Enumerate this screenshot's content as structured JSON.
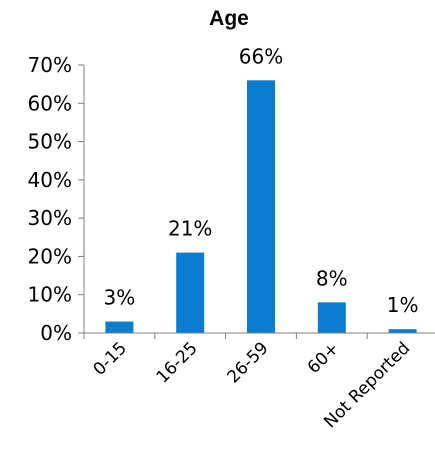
{
  "chart_data": {
    "type": "bar",
    "title": "Age",
    "categories": [
      "0-15",
      "16-25",
      "26-59",
      "60+",
      "Not Reported"
    ],
    "values": [
      3,
      21,
      66,
      8,
      1
    ],
    "value_labels": [
      "3%",
      "21%",
      "66%",
      "8%",
      "1%"
    ],
    "ylim": [
      0,
      70
    ],
    "y_ticks": [
      0,
      10,
      20,
      30,
      40,
      50,
      60,
      70
    ],
    "y_tick_labels": [
      "0%",
      "10%",
      "20%",
      "30%",
      "40%",
      "50%",
      "60%",
      "70%"
    ],
    "xlabel": "",
    "ylabel": "",
    "grid": false,
    "legend": "none",
    "bar_color": "#0a7dd0"
  }
}
